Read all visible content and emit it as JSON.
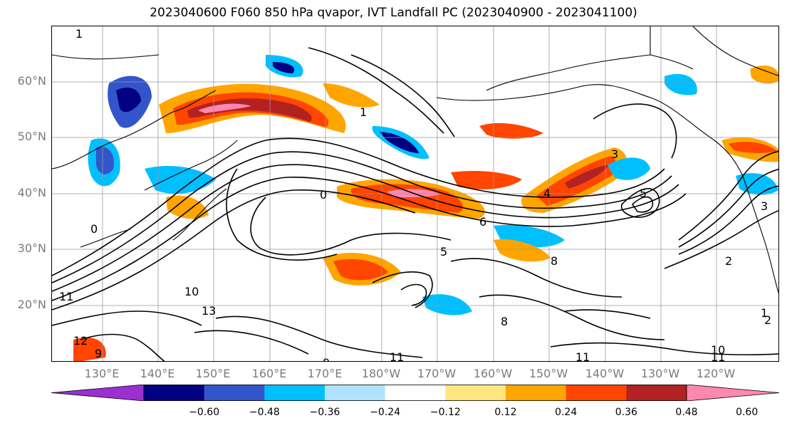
{
  "title": "2023040600 F060 850 hPa qvapor, IVT Landfall PC (2023040900 - 2023041100)",
  "lat_labels": [
    "60°N",
    "50°N",
    "40°N",
    "30°N",
    "20°N"
  ],
  "lon_labels": [
    "130°E",
    "140°E",
    "150°E",
    "160°E",
    "170°E",
    "180°W",
    "170°W",
    "160°W",
    "150°W",
    "140°W",
    "130°W",
    "120°W"
  ],
  "colorbar": {
    "colors": [
      "#9b30d0",
      "#000080",
      "#3355cc",
      "#00bfff",
      "#b0e2ff",
      "#ffffff",
      "#ffe680",
      "#ffa500",
      "#ff4500",
      "#b22222",
      "#ff88b0"
    ],
    "tick_labels": [
      "−0.60",
      "−0.48",
      "−0.36",
      "−0.24",
      "−0.12",
      "0.12",
      "0.24",
      "0.36",
      "0.48",
      "0.60"
    ]
  },
  "contour_labels": [
    "1",
    "1",
    "0",
    "0",
    "2",
    "3",
    "4",
    "5",
    "6",
    "8",
    "9",
    "10",
    "11",
    "11",
    "11",
    "12",
    "13",
    "1",
    "2",
    "3",
    "5",
    "8",
    "9",
    "10",
    "11"
  ]
}
